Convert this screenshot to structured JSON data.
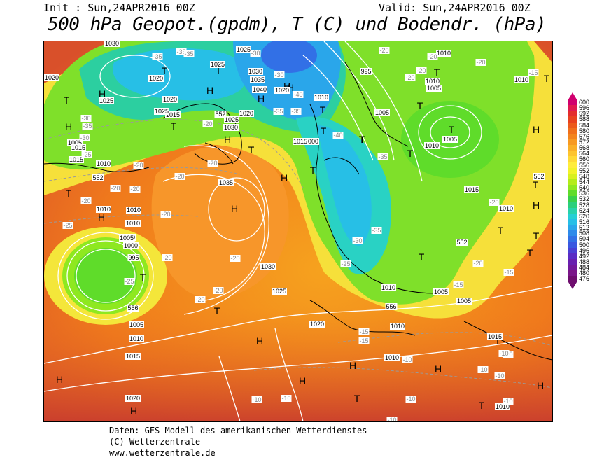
{
  "header": {
    "init_text": "Init : Sun,24APR2016 00Z",
    "valid_text": "Valid: Sun,24APR2016 00Z",
    "title": "500 hPa Geopot.(gpdm), T (C) und Bodendr. (hPa)"
  },
  "legend": {
    "values": [
      "600",
      "596",
      "592",
      "588",
      "584",
      "580",
      "576",
      "572",
      "568",
      "564",
      "560",
      "556",
      "552",
      "548",
      "544",
      "540",
      "536",
      "532",
      "528",
      "524",
      "520",
      "516",
      "512",
      "508",
      "504",
      "500",
      "496",
      "492",
      "488",
      "484",
      "480",
      "476"
    ],
    "colors": [
      "#d0006e",
      "#e01a4f",
      "#e32d2d",
      "#e8421f",
      "#ec5a1c",
      "#f0701c",
      "#f3841e",
      "#f79a22",
      "#fab028",
      "#fdc42f",
      "#ffd936",
      "#ffec3c",
      "#f2f22a",
      "#d8f01f",
      "#b4ec1a",
      "#8ee820",
      "#5fdc2a",
      "#38d04a",
      "#2ccf7c",
      "#29d2aa",
      "#27cfd4",
      "#27bfe6",
      "#2aa6ea",
      "#2e8aea",
      "#3270e6",
      "#3a58e0",
      "#4a40d4",
      "#5a2cc4",
      "#6820b0",
      "#721a9c",
      "#7a1688",
      "#6e0e6e"
    ]
  },
  "map": {
    "labels_H": [
      "H",
      "H",
      "H",
      "H",
      "H",
      "H",
      "H",
      "H",
      "H",
      "H",
      "H",
      "H",
      "H",
      "H",
      "H",
      "H",
      "H",
      "H",
      "H"
    ],
    "labels_T": [
      "T",
      "T",
      "T",
      "T",
      "T",
      "T",
      "T",
      "T",
      "T",
      "T",
      "T",
      "T",
      "T",
      "T",
      "T",
      "T",
      "T",
      "T",
      "T",
      "T",
      "T",
      "T",
      "T",
      "T",
      "T",
      "T"
    ],
    "pressure_labels": [
      "1030",
      "1025",
      "1030",
      "1035",
      "1040",
      "1025",
      "1020",
      "1015",
      "1020",
      "1025",
      "1030",
      "1025",
      "1020",
      "995",
      "1010",
      "1000",
      "1005",
      "1010",
      "1020",
      "1015",
      "1010",
      "1015",
      "1035",
      "1010",
      "1010",
      "1005",
      "1000",
      "995",
      "1005",
      "1010",
      "1015",
      "1020",
      "1025",
      "1030",
      "1010",
      "1015",
      "1005",
      "1005",
      "1010",
      "1005",
      "1020",
      "1010",
      "1010",
      "1015",
      "1020",
      "1010",
      "1010",
      "1010",
      "1005",
      "1010",
      "1015",
      "1010",
      "1005",
      "1025",
      "1010"
    ],
    "temp_labels": [
      "-35",
      "-30",
      "-35",
      "-30",
      "-25",
      "-35",
      "-30",
      "-40",
      "-35",
      "-30",
      "-20",
      "-20",
      "-20",
      "-20",
      "-20",
      "-20",
      "-20",
      "-25",
      "-20",
      "-20",
      "-20",
      "-25",
      "-20",
      "-25",
      "-20",
      "-20",
      "-15",
      "-15",
      "-10",
      "-10",
      "-10",
      "-10",
      "-10",
      "-10",
      "-10",
      "-10",
      "-15",
      "-20",
      "-35",
      "-35",
      "-40",
      "-30",
      "-35",
      "-20",
      "-15",
      "-10",
      "-20",
      "-20",
      "-20",
      "-15",
      "-10",
      "-35",
      "-20"
    ],
    "geopot_labels": [
      "552",
      "552",
      "556",
      "552",
      "556",
      "552"
    ]
  },
  "credits": {
    "line1": "Daten: GFS-Modell des amerikanischen Wetterdienstes",
    "line2": "(C) Wetterzentrale",
    "line3": "www.wetterzentrale.de"
  }
}
